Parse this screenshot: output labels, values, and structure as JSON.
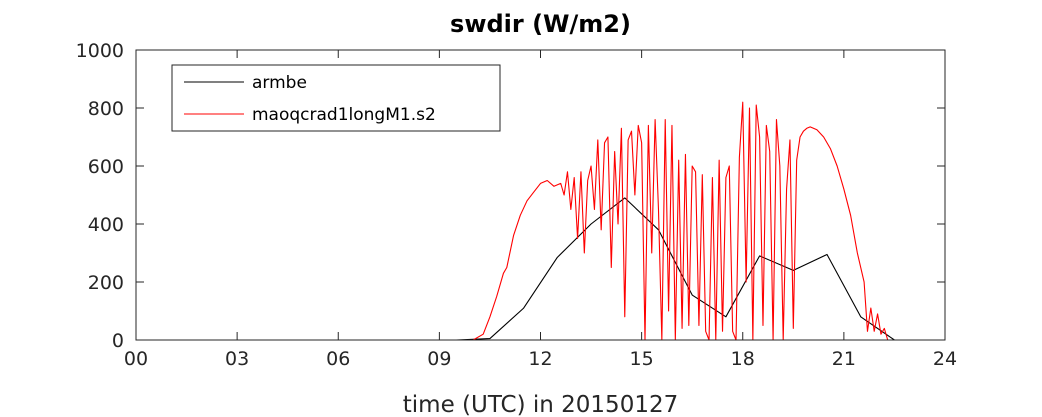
{
  "chart_data": {
    "type": "line",
    "title": "swdir  (W/m2)",
    "xlabel": "time (UTC) in 20150127",
    "ylabel": "",
    "xlim": [
      0,
      24
    ],
    "ylim": [
      0,
      1000
    ],
    "xticks": [
      0,
      3,
      6,
      9,
      12,
      15,
      18,
      21,
      24
    ],
    "xtick_labels": [
      "00",
      "03",
      "06",
      "09",
      "12",
      "15",
      "18",
      "21",
      "24"
    ],
    "yticks": [
      0,
      200,
      400,
      600,
      800,
      1000
    ],
    "ytick_labels": [
      "0",
      "200",
      "400",
      "600",
      "800",
      "1000"
    ],
    "grid": false,
    "legend_position": "top-left",
    "series": [
      {
        "name": "armbe",
        "color": "#000000",
        "x": [
          0,
          1,
          2,
          3,
          4,
          5,
          6,
          7,
          8,
          9,
          9.5,
          10.5,
          11.5,
          12.5,
          13.5,
          14.5,
          15.5,
          16.5,
          17.5,
          18.5,
          19.5,
          20.5,
          21.5,
          22.5,
          23.5,
          24
        ],
        "y": [
          0,
          0,
          0,
          0,
          0,
          0,
          0,
          0,
          0,
          0,
          0,
          5,
          110,
          285,
          400,
          490,
          380,
          155,
          80,
          290,
          240,
          295,
          80,
          0,
          0,
          0
        ]
      },
      {
        "name": "maoqcrad1longM1.s2",
        "color": "#ff0000",
        "x": [
          0,
          10,
          10.3,
          10.5,
          10.7,
          10.9,
          11.0,
          11.2,
          11.4,
          11.6,
          11.8,
          12.0,
          12.2,
          12.4,
          12.6,
          12.7,
          12.8,
          12.9,
          13.0,
          13.1,
          13.2,
          13.3,
          13.4,
          13.5,
          13.6,
          13.7,
          13.8,
          13.9,
          14.0,
          14.1,
          14.2,
          14.3,
          14.4,
          14.5,
          14.6,
          14.7,
          14.8,
          14.9,
          15.0,
          15.1,
          15.2,
          15.3,
          15.4,
          15.5,
          15.6,
          15.7,
          15.8,
          15.9,
          16.0,
          16.1,
          16.2,
          16.3,
          16.4,
          16.5,
          16.6,
          16.7,
          16.8,
          16.9,
          17.0,
          17.1,
          17.2,
          17.3,
          17.4,
          17.5,
          17.6,
          17.7,
          17.8,
          17.9,
          18.0,
          18.1,
          18.2,
          18.3,
          18.4,
          18.5,
          18.6,
          18.7,
          18.8,
          18.9,
          19.0,
          19.1,
          19.2,
          19.3,
          19.4,
          19.5,
          19.6,
          19.7,
          19.8,
          19.9,
          20.0,
          20.2,
          20.4,
          20.6,
          20.8,
          21.0,
          21.2,
          21.4,
          21.6,
          21.7,
          21.8,
          21.9,
          22.0,
          22.1,
          22.2,
          22.3,
          22.5,
          23,
          24
        ],
        "y": [
          0,
          0,
          20,
          80,
          150,
          230,
          250,
          360,
          430,
          480,
          510,
          540,
          550,
          530,
          540,
          500,
          580,
          450,
          560,
          350,
          580,
          300,
          550,
          600,
          450,
          690,
          380,
          680,
          700,
          250,
          650,
          400,
          730,
          80,
          690,
          720,
          500,
          740,
          680,
          0,
          740,
          300,
          760,
          450,
          0,
          760,
          100,
          740,
          0,
          620,
          40,
          640,
          50,
          600,
          580,
          50,
          570,
          30,
          0,
          560,
          0,
          620,
          30,
          560,
          600,
          30,
          0,
          630,
          820,
          200,
          800,
          0,
          810,
          700,
          50,
          740,
          650,
          0,
          760,
          600,
          0,
          520,
          690,
          40,
          620,
          700,
          720,
          730,
          735,
          725,
          700,
          660,
          600,
          520,
          430,
          300,
          200,
          30,
          110,
          30,
          90,
          20,
          40,
          0,
          0,
          0,
          0
        ]
      }
    ]
  }
}
